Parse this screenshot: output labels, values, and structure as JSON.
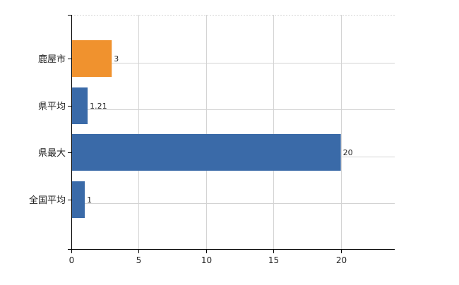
{
  "chart_data": {
    "type": "bar",
    "orientation": "horizontal",
    "categories": [
      "鹿屋市",
      "県平均",
      "県最大",
      "全国平均"
    ],
    "values": [
      3,
      1.21,
      20,
      1
    ],
    "value_labels": [
      "3",
      "1.21",
      "20",
      "1"
    ],
    "bar_colors": [
      "#f0922e",
      "#3a6aa8",
      "#3a6aa8",
      "#3a6aa8"
    ],
    "xlim": [
      0,
      24
    ],
    "x_ticks": [
      0,
      5,
      10,
      15,
      20
    ],
    "x_tick_labels": [
      "0",
      "5",
      "10",
      "15",
      "20"
    ],
    "grid": true,
    "legend": false,
    "title": "",
    "xlabel": "",
    "ylabel": ""
  },
  "colors": {
    "highlight": "#f0922e",
    "standard": "#3a6aa8",
    "grid": "#d3d3d3"
  }
}
